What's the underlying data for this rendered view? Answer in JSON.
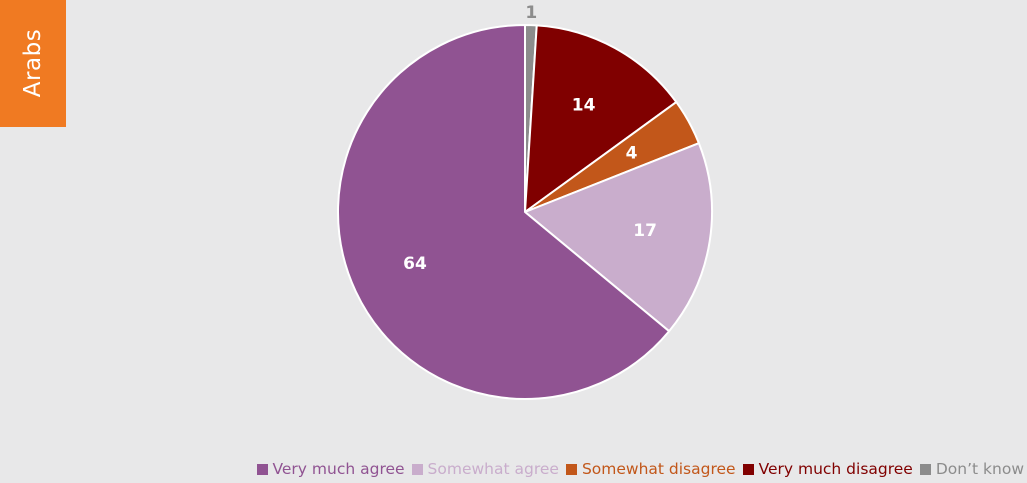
{
  "side_tab": {
    "label": "Arabs",
    "color": "#f07a22"
  },
  "chart_data": {
    "type": "pie",
    "start_angle_deg": 0,
    "direction": "clockwise",
    "slices": [
      {
        "label": "Don’t know",
        "value": 1,
        "color": "#8c8c8c",
        "label_color": "#8c8c8c",
        "label_outside": true
      },
      {
        "label": "Very much disagree",
        "value": 14,
        "color": "#800000",
        "label_color": "#ffffff",
        "label_outside": false
      },
      {
        "label": "Somewhat disagree",
        "value": 4,
        "color": "#c2571a",
        "label_color": "#ffffff",
        "label_outside": false
      },
      {
        "label": "Somewhat agree",
        "value": 17,
        "color": "#c9adcc",
        "label_color": "#ffffff",
        "label_outside": false
      },
      {
        "label": "Very much agree",
        "value": 64,
        "color": "#905392",
        "label_color": "#ffffff",
        "label_outside": false
      }
    ],
    "legend_order": [
      "Very much agree",
      "Somewhat agree",
      "Somewhat disagree",
      "Very much disagree",
      "Don’t know"
    ],
    "legend_placement": "bottom"
  }
}
